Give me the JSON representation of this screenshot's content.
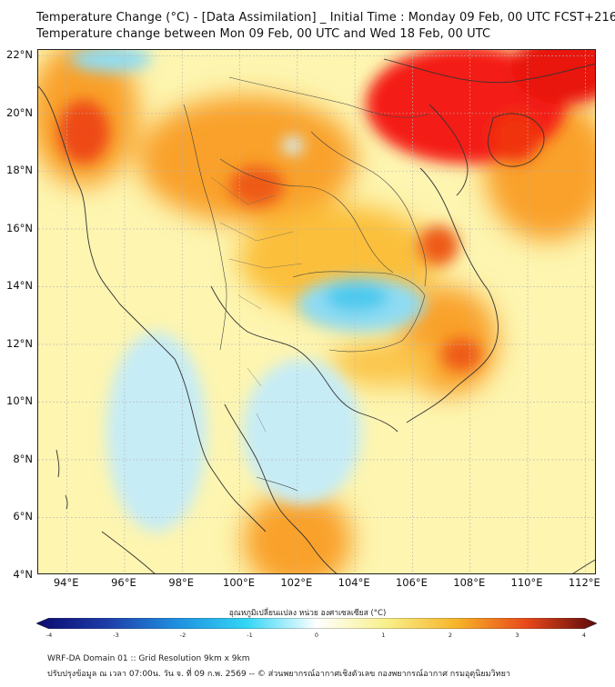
{
  "title_line1": "Temperature Change (°C) - [Data Assimilation] _ Initial Time : Monday 09 Feb, 00 UTC FCST+216",
  "title_line2": "Temperature change between Mon 09 Feb, 00 UTC and Wed 18 Feb, 00 UTC",
  "lat_labels": [
    {
      "text": "22°N",
      "value": 22
    },
    {
      "text": "20°N",
      "value": 20
    },
    {
      "text": "18°N",
      "value": 18
    },
    {
      "text": "16°N",
      "value": 16
    },
    {
      "text": "14°N",
      "value": 14
    },
    {
      "text": "12°N",
      "value": 12
    },
    {
      "text": "10°N",
      "value": 10
    },
    {
      "text": "8°N",
      "value": 8
    },
    {
      "text": "6°N",
      "value": 6
    },
    {
      "text": "4°N",
      "value": 4
    }
  ],
  "lon_labels": [
    {
      "text": "94°E",
      "value": 94
    },
    {
      "text": "96°E",
      "value": 96
    },
    {
      "text": "98°E",
      "value": 98
    },
    {
      "text": "100°E",
      "value": 100
    },
    {
      "text": "102°E",
      "value": 102
    },
    {
      "text": "104°E",
      "value": 104
    },
    {
      "text": "106°E",
      "value": 106
    },
    {
      "text": "108°E",
      "value": 108
    },
    {
      "text": "110°E",
      "value": 110
    },
    {
      "text": "112°E",
      "value": 112
    }
  ],
  "map_extent": {
    "lon": [
      93.0,
      112.4
    ],
    "lat": [
      4.0,
      22.2
    ]
  },
  "colorbar": {
    "title": "อุณหภูมิเปลี่ยนแปลง หน่วย องศาเซลเซียส (°C)",
    "range": [
      -4,
      4
    ],
    "ticks": [
      "-4",
      "-3",
      "-2",
      "-1",
      "0",
      "1",
      "2",
      "3",
      "4"
    ],
    "colors": [
      "#0a0a6e",
      "#1e3ca8",
      "#1f8fe0",
      "#33d6f5",
      "#ffffff",
      "#f8f08a",
      "#f7b428",
      "#e8481a",
      "#5c0a0a"
    ]
  },
  "field_colors": {
    "hot": "#f41e12",
    "warm": "#f9a12c",
    "mild": "#fde55a",
    "neutral": "#fdf7b9",
    "cool": "#bfeaf6",
    "cold": "#62cff0"
  },
  "footer_line1": "WRF-DA Domain 01 :: Grid Resolution 9km x 9km",
  "footer_line2": "ปรับปรุงข้อมูล ณ เวลา 07:00น. วัน จ. ที่ 09 ก.พ. 2569 -- © ส่วนพยากรณ์อากาศเชิงตัวเลข กองพยากรณ์อากาศ กรมอุตุนิยมวิทยา"
}
